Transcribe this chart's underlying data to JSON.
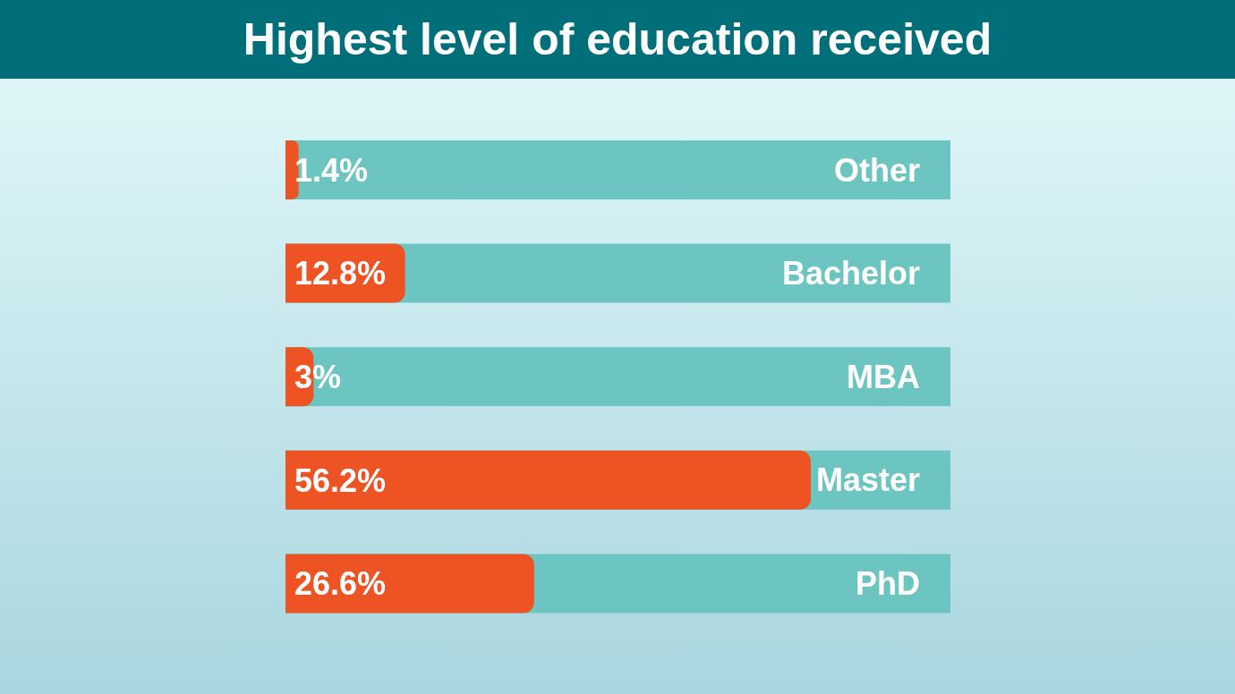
{
  "chart_data": {
    "type": "bar",
    "orientation": "horizontal",
    "title": "Highest level of education received",
    "categories": [
      "Other",
      "Bachelor",
      "MBA",
      "Master",
      "PhD"
    ],
    "values": [
      1.4,
      12.8,
      3,
      56.2,
      26.6
    ],
    "value_labels": [
      "1.4%",
      "12.8%",
      "3%",
      "56.2%",
      "26.6%"
    ],
    "color": "#ee5324"
  }
}
